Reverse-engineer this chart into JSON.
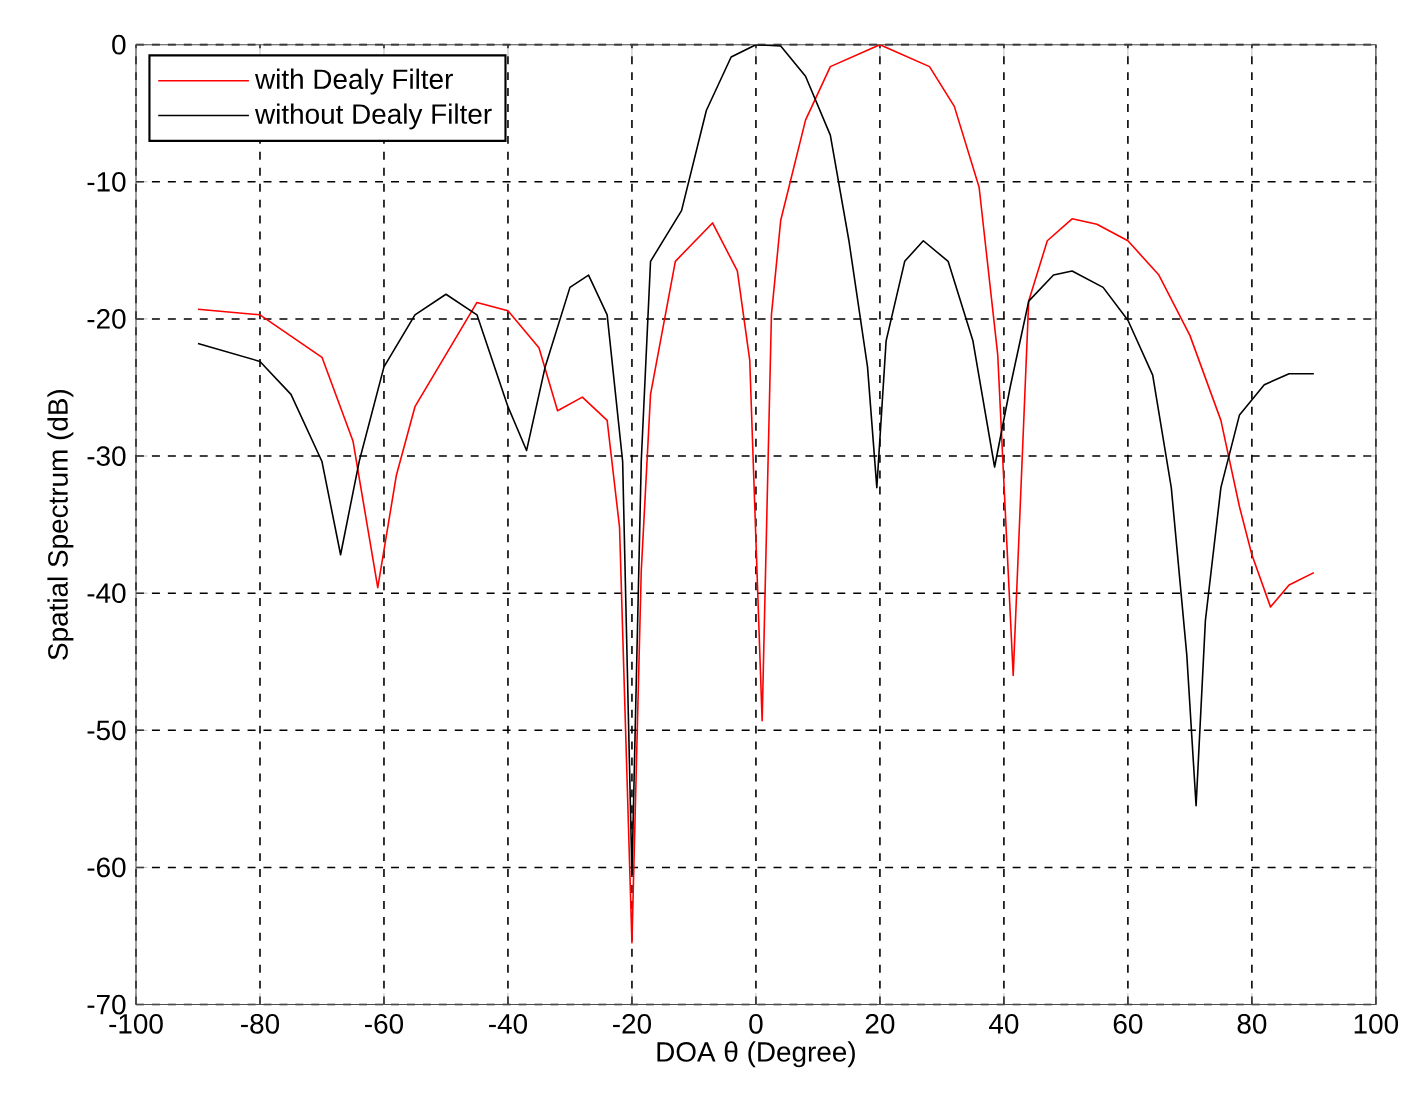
{
  "chart_data": {
    "type": "line",
    "xlabel": "DOA θ (Degree)",
    "ylabel": "Spatial Spectrum (dB)",
    "xlim": [
      -100,
      100
    ],
    "ylim": [
      -70,
      0
    ],
    "xticks": [
      -100,
      -80,
      -60,
      -40,
      -20,
      0,
      20,
      40,
      60,
      80,
      100
    ],
    "yticks": [
      -70,
      -60,
      -50,
      -40,
      -30,
      -20,
      -10,
      0
    ],
    "grid": true,
    "legend": "top left",
    "line_style": "solid",
    "marker": "none",
    "series": [
      {
        "name": "with Dealy Filter",
        "color": "#ff0000",
        "x": [
          -90,
          -80,
          -70,
          -65,
          -61,
          -58,
          -55,
          -50,
          -45,
          -40,
          -35,
          -32,
          -28,
          -24,
          -22,
          -20,
          -18.5,
          -17,
          -13,
          -7,
          -3,
          -1,
          1,
          2.5,
          4,
          8,
          12,
          20,
          28,
          32,
          36,
          39,
          41.5,
          44,
          47,
          51,
          55,
          60,
          65,
          70,
          75,
          78,
          80,
          83,
          86,
          90
        ],
        "values": [
          -19.3,
          -19.7,
          -22.8,
          -28.9,
          -39.6,
          -31.4,
          -26.4,
          -22.6,
          -18.8,
          -19.4,
          -22.1,
          -26.7,
          -25.7,
          -27.4,
          -35.2,
          -65.5,
          -38.4,
          -25.5,
          -15.8,
          -13,
          -16.5,
          -23,
          -49.3,
          -19.7,
          -12.8,
          -5.5,
          -1.6,
          0,
          -1.6,
          -4.5,
          -10.4,
          -22.6,
          -46,
          -18.7,
          -14.3,
          -12.7,
          -13.1,
          -14.3,
          -16.8,
          -21.2,
          -27.4,
          -33.7,
          -37.2,
          -41,
          -39.4,
          -38.5
        ]
      },
      {
        "name": "without Dealy Filter",
        "color": "#000000",
        "x": [
          -90,
          -80,
          -75,
          -70,
          -67,
          -64,
          -60,
          -55,
          -50,
          -45,
          -40,
          -37,
          -34,
          -30,
          -27,
          -24,
          -21.5,
          -20,
          -18.5,
          -17,
          -12,
          -8,
          -4,
          0,
          4,
          8,
          12,
          15,
          18,
          19.5,
          21,
          24,
          27,
          31,
          35,
          38.5,
          41,
          44,
          48,
          51,
          56,
          60,
          64,
          67,
          69.5,
          71,
          72.5,
          75,
          78,
          82,
          86,
          90
        ],
        "values": [
          -21.8,
          -23.1,
          -25.5,
          -30.4,
          -37.2,
          -30.4,
          -23.5,
          -19.7,
          -18.2,
          -19.7,
          -26.4,
          -29.6,
          -23.5,
          -17.7,
          -16.8,
          -19.7,
          -30.4,
          -60.5,
          -30.4,
          -15.8,
          -12.1,
          -4.8,
          -0.9,
          0,
          -0.1,
          -2.3,
          -6.6,
          -14.3,
          -23.5,
          -32.3,
          -21.6,
          -15.8,
          -14.3,
          -15.8,
          -21.6,
          -30.8,
          -25,
          -18.7,
          -16.8,
          -16.5,
          -17.7,
          -20.1,
          -24.1,
          -32.3,
          -44.5,
          -55.5,
          -42,
          -32.3,
          -27,
          -24.8,
          -24,
          -24
        ]
      }
    ]
  }
}
